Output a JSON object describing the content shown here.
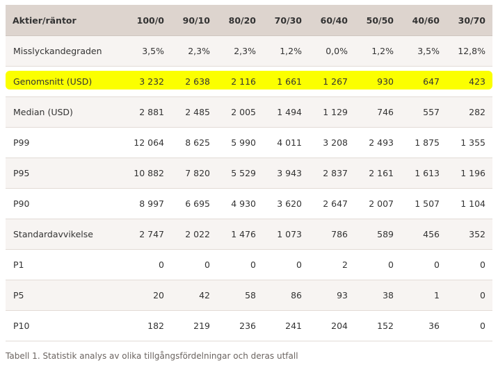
{
  "table": {
    "header": [
      "Aktier/räntor",
      "100/0",
      "90/10",
      "80/20",
      "70/30",
      "60/40",
      "50/50",
      "40/60",
      "30/70"
    ],
    "rows": [
      [
        "Misslyckandegraden",
        "3,5%",
        "2,3%",
        "2,3%",
        "1,2%",
        "0,0%",
        "1,2%",
        "3,5%",
        "12,8%"
      ],
      [
        "Genomsnitt (USD)",
        "3 232",
        "2 638",
        "2 116",
        "1 661",
        "1 267",
        "930",
        "647",
        "423"
      ],
      [
        "Median (USD)",
        "2 881",
        "2 485",
        "2 005",
        "1 494",
        "1 129",
        "746",
        "557",
        "282"
      ],
      [
        "P99",
        "12 064",
        "8 625",
        "5 990",
        "4 011",
        "3 208",
        "2 493",
        "1 875",
        "1 355"
      ],
      [
        "P95",
        "10 882",
        "7 820",
        "5 529",
        "3 943",
        "2 837",
        "2 161",
        "1 613",
        "1 196"
      ],
      [
        "P90",
        "8 997",
        "6 695",
        "4 930",
        "3 620",
        "2 647",
        "2 007",
        "1 507",
        "1 104"
      ],
      [
        "Standardavvikelse",
        "2 747",
        "2 022",
        "1 476",
        "1 073",
        "786",
        "589",
        "456",
        "352"
      ],
      [
        "P1",
        "0",
        "0",
        "0",
        "0",
        "2",
        "0",
        "0",
        "0"
      ],
      [
        "P5",
        "20",
        "42",
        "58",
        "86",
        "93",
        "38",
        "1",
        "0"
      ],
      [
        "P10",
        "182",
        "219",
        "236",
        "241",
        "204",
        "152",
        "36",
        "0"
      ]
    ],
    "highlighted_row_index": 1,
    "highlight_color": "#fbff00",
    "header_bg": "#ddd4ce"
  },
  "caption": "Tabell 1. Statistik analys av olika tillgångsfördelningar och deras utfall"
}
